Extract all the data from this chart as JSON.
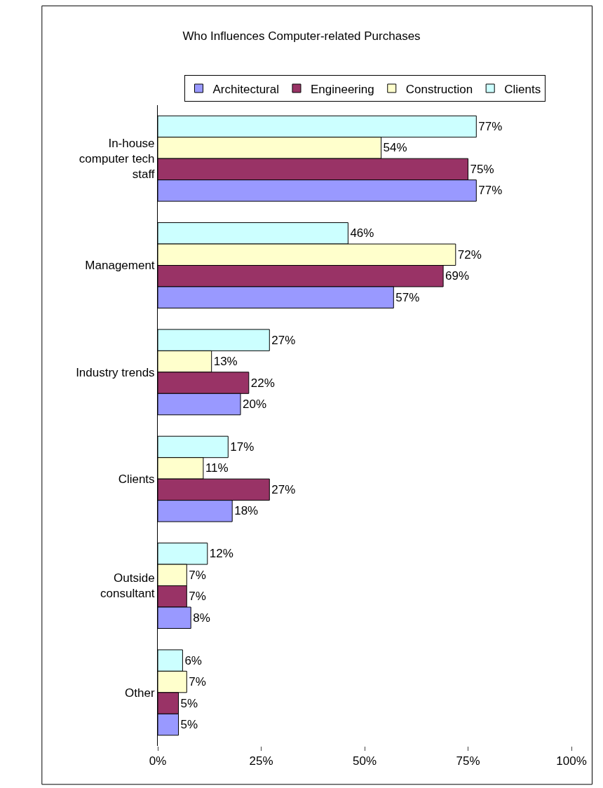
{
  "chart_data": {
    "type": "bar",
    "orientation": "horizontal",
    "title": "Who Influences Computer-related Purchases",
    "categories": [
      "In-house computer tech staff",
      "Management",
      "Industry trends",
      "Clients",
      "Outside consultant",
      "Other"
    ],
    "series": [
      {
        "name": "Architectural",
        "color": "#9999ff",
        "values": [
          77,
          57,
          20,
          18,
          8,
          5
        ],
        "value_labels": [
          "77%",
          "57%",
          "20%",
          "18%",
          "8%",
          "5%"
        ]
      },
      {
        "name": "Engineering",
        "color": "#993366",
        "values": [
          75,
          69,
          22,
          27,
          7,
          5
        ],
        "value_labels": [
          "75%",
          "69%",
          "22%",
          "27%",
          "7%",
          "5%"
        ]
      },
      {
        "name": "Construction",
        "color": "#ffffcc",
        "values": [
          54,
          72,
          13,
          11,
          7,
          7
        ],
        "value_labels": [
          "54%",
          "72%",
          "13%",
          "11%",
          "7%",
          "7%"
        ]
      },
      {
        "name": "Clients",
        "color": "#ccffff",
        "values": [
          77,
          46,
          27,
          17,
          12,
          6
        ],
        "value_labels": [
          "77%",
          "46%",
          "27%",
          "17%",
          "12%",
          "6%"
        ]
      }
    ],
    "xlim": [
      0,
      100
    ],
    "xticks": [
      {
        "value": 0,
        "label": "0%"
      },
      {
        "value": 25,
        "label": "25%"
      },
      {
        "value": 50,
        "label": "50%"
      },
      {
        "value": 75,
        "label": "75%"
      },
      {
        "value": 100,
        "label": "100%"
      }
    ],
    "legend": "top"
  }
}
